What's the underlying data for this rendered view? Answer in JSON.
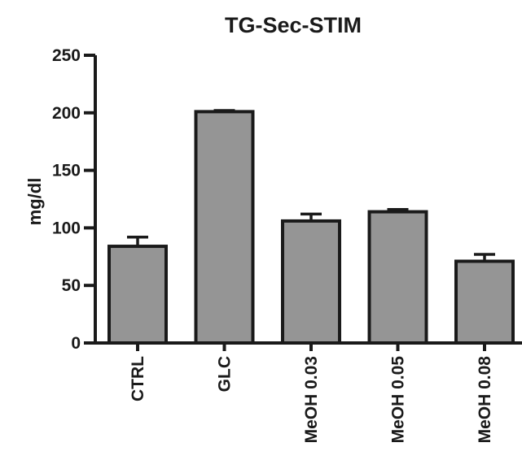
{
  "chart_data": {
    "type": "bar",
    "title": "TG-Sec-STIM",
    "xlabel": "",
    "ylabel": "mg/dl",
    "ylim": [
      0,
      250
    ],
    "yticks": [
      0,
      50,
      100,
      150,
      200,
      250
    ],
    "categories": [
      "CTRL",
      "GLC",
      "MeOH 0.03",
      "MeOH 0.05",
      "MeOH 0.08"
    ],
    "values": [
      84,
      201,
      106,
      114,
      71
    ],
    "errors": [
      8,
      1,
      6,
      2,
      6
    ],
    "grid": false,
    "legend": "none",
    "bar_color": "#959595",
    "edge_color": "#1a1a1a"
  }
}
